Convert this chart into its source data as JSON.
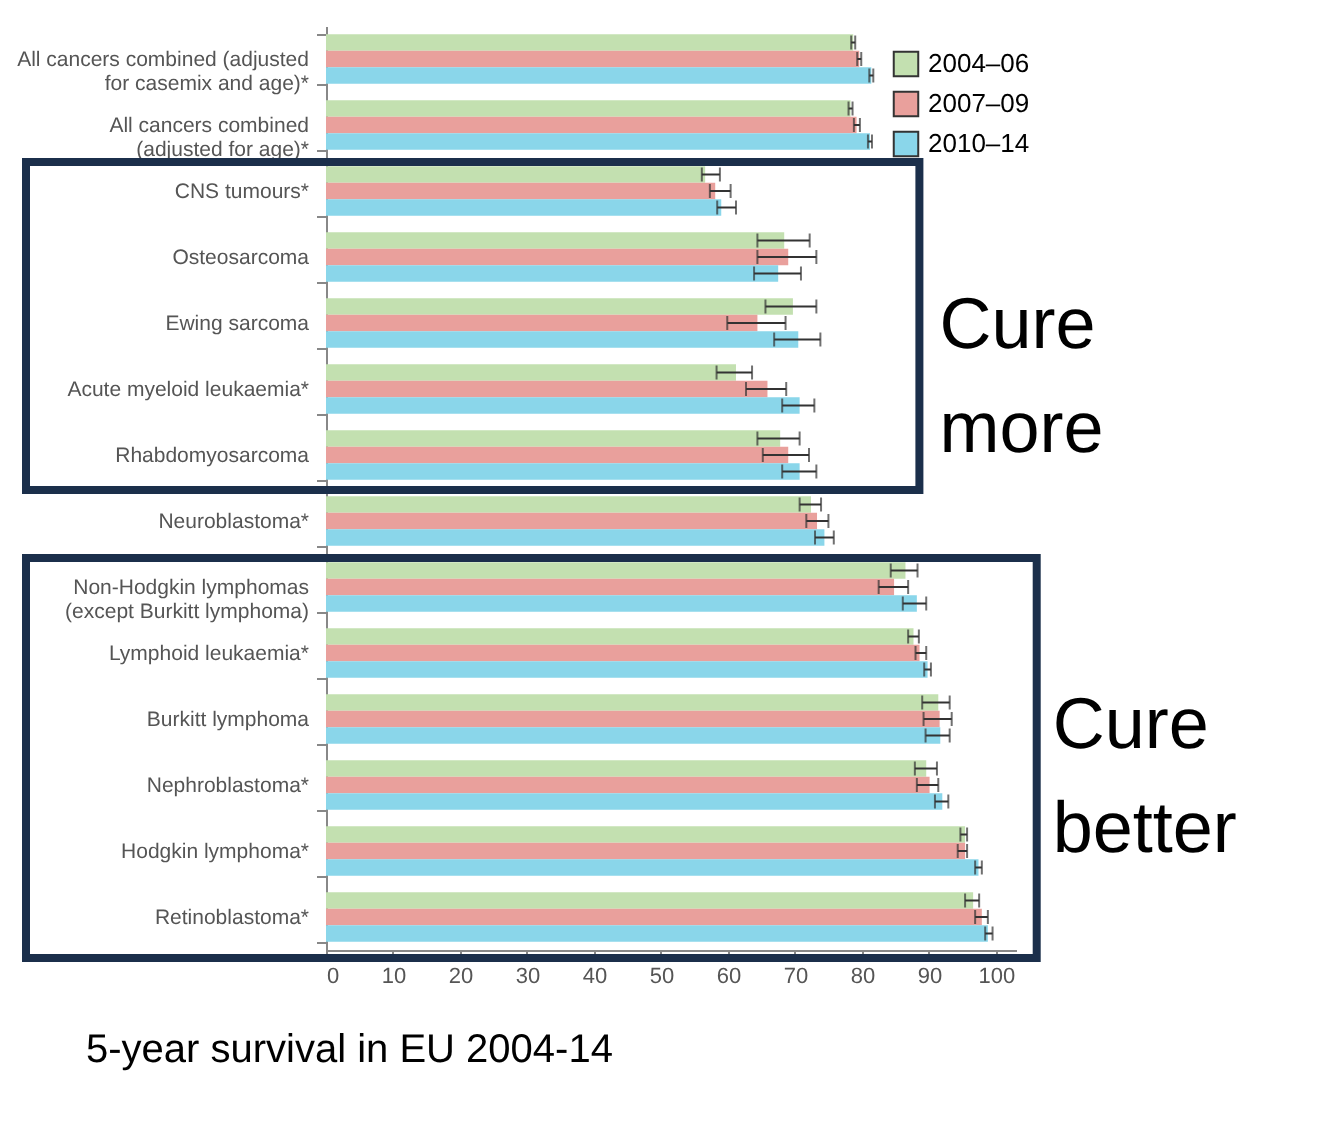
{
  "chart_data": {
    "type": "bar",
    "orientation": "horizontal",
    "categories": [
      "All cancers combined (adjusted for casemix and age)*",
      "All cancers combined (adjusted for age)*",
      "CNS tumours*",
      "Osteosarcoma",
      "Ewing sarcoma",
      "Acute myeloid leukaemia*",
      "Rhabdomyosarcoma",
      "Neuroblastoma*",
      "Non-Hodgkin lymphomas (except Burkitt lymphoma)",
      "Lymphoid leukaemia*",
      "Burkitt lymphoma",
      "Nephroblastoma*",
      "Hodgkin lymphoma*",
      "Retinoblastoma*"
    ],
    "series": [
      {
        "name": "2004–06",
        "color": "#c3e0b0",
        "values": [
          78.7,
          78.3,
          56.6,
          68.4,
          69.7,
          61.2,
          67.8,
          72.4,
          86.5,
          87.7,
          91.4,
          89.6,
          95.4,
          96.6
        ],
        "errors": [
          [
            78.4,
            79.0
          ],
          [
            78.0,
            78.6
          ],
          [
            56.1,
            58.8
          ],
          [
            64.4,
            72.2
          ],
          [
            65.6,
            73.2
          ],
          [
            58.3,
            63.6
          ],
          [
            64.4,
            70.7
          ],
          [
            70.7,
            73.9
          ],
          [
            84.3,
            88.3
          ],
          [
            86.9,
            88.5
          ],
          [
            89.0,
            93.1
          ],
          [
            87.9,
            91.2
          ],
          [
            94.7,
            95.7
          ],
          [
            95.4,
            97.5
          ]
        ]
      },
      {
        "name": "2007–09",
        "color": "#e9a09c",
        "values": [
          79.6,
          79.2,
          58.1,
          69.0,
          64.4,
          65.9,
          69.0,
          73.3,
          84.8,
          88.6,
          91.6,
          90.1,
          95.4,
          97.9
        ],
        "errors": [
          [
            79.3,
            79.9
          ],
          [
            78.8,
            79.7
          ],
          [
            57.3,
            60.4
          ],
          [
            64.4,
            73.2
          ],
          [
            59.9,
            68.6
          ],
          [
            62.7,
            68.7
          ],
          [
            65.2,
            72.1
          ],
          [
            71.7,
            75.0
          ],
          [
            82.5,
            86.9
          ],
          [
            88.0,
            89.6
          ],
          [
            89.2,
            93.4
          ],
          [
            88.2,
            91.4
          ],
          [
            94.3,
            95.7
          ],
          [
            96.9,
            98.8
          ]
        ]
      },
      {
        "name": "2010–14",
        "color": "#8ad6ea",
        "values": [
          81.4,
          81.2,
          59.0,
          67.5,
          70.5,
          70.7,
          70.7,
          74.4,
          88.2,
          89.8,
          91.7,
          92.0,
          97.4,
          98.8
        ],
        "errors": [
          [
            81.1,
            81.7
          ],
          [
            80.9,
            81.5
          ],
          [
            58.4,
            61.2
          ],
          [
            63.9,
            70.9
          ],
          [
            66.9,
            73.8
          ],
          [
            68.1,
            72.9
          ],
          [
            68.1,
            73.2
          ],
          [
            73.0,
            75.8
          ],
          [
            86.1,
            89.6
          ],
          [
            89.3,
            90.3
          ],
          [
            89.5,
            93.1
          ],
          [
            90.9,
            92.9
          ],
          [
            96.9,
            97.9
          ],
          [
            98.4,
            99.5
          ]
        ]
      }
    ],
    "xlim": [
      0,
      103
    ],
    "xticks": [
      0,
      10,
      20,
      30,
      40,
      50,
      60,
      70,
      80,
      90,
      100
    ],
    "grid": false,
    "legend": "top right",
    "annotations": [
      "Cure more",
      "Cure better",
      "5-year survival in EU 2004-14"
    ]
  }
}
